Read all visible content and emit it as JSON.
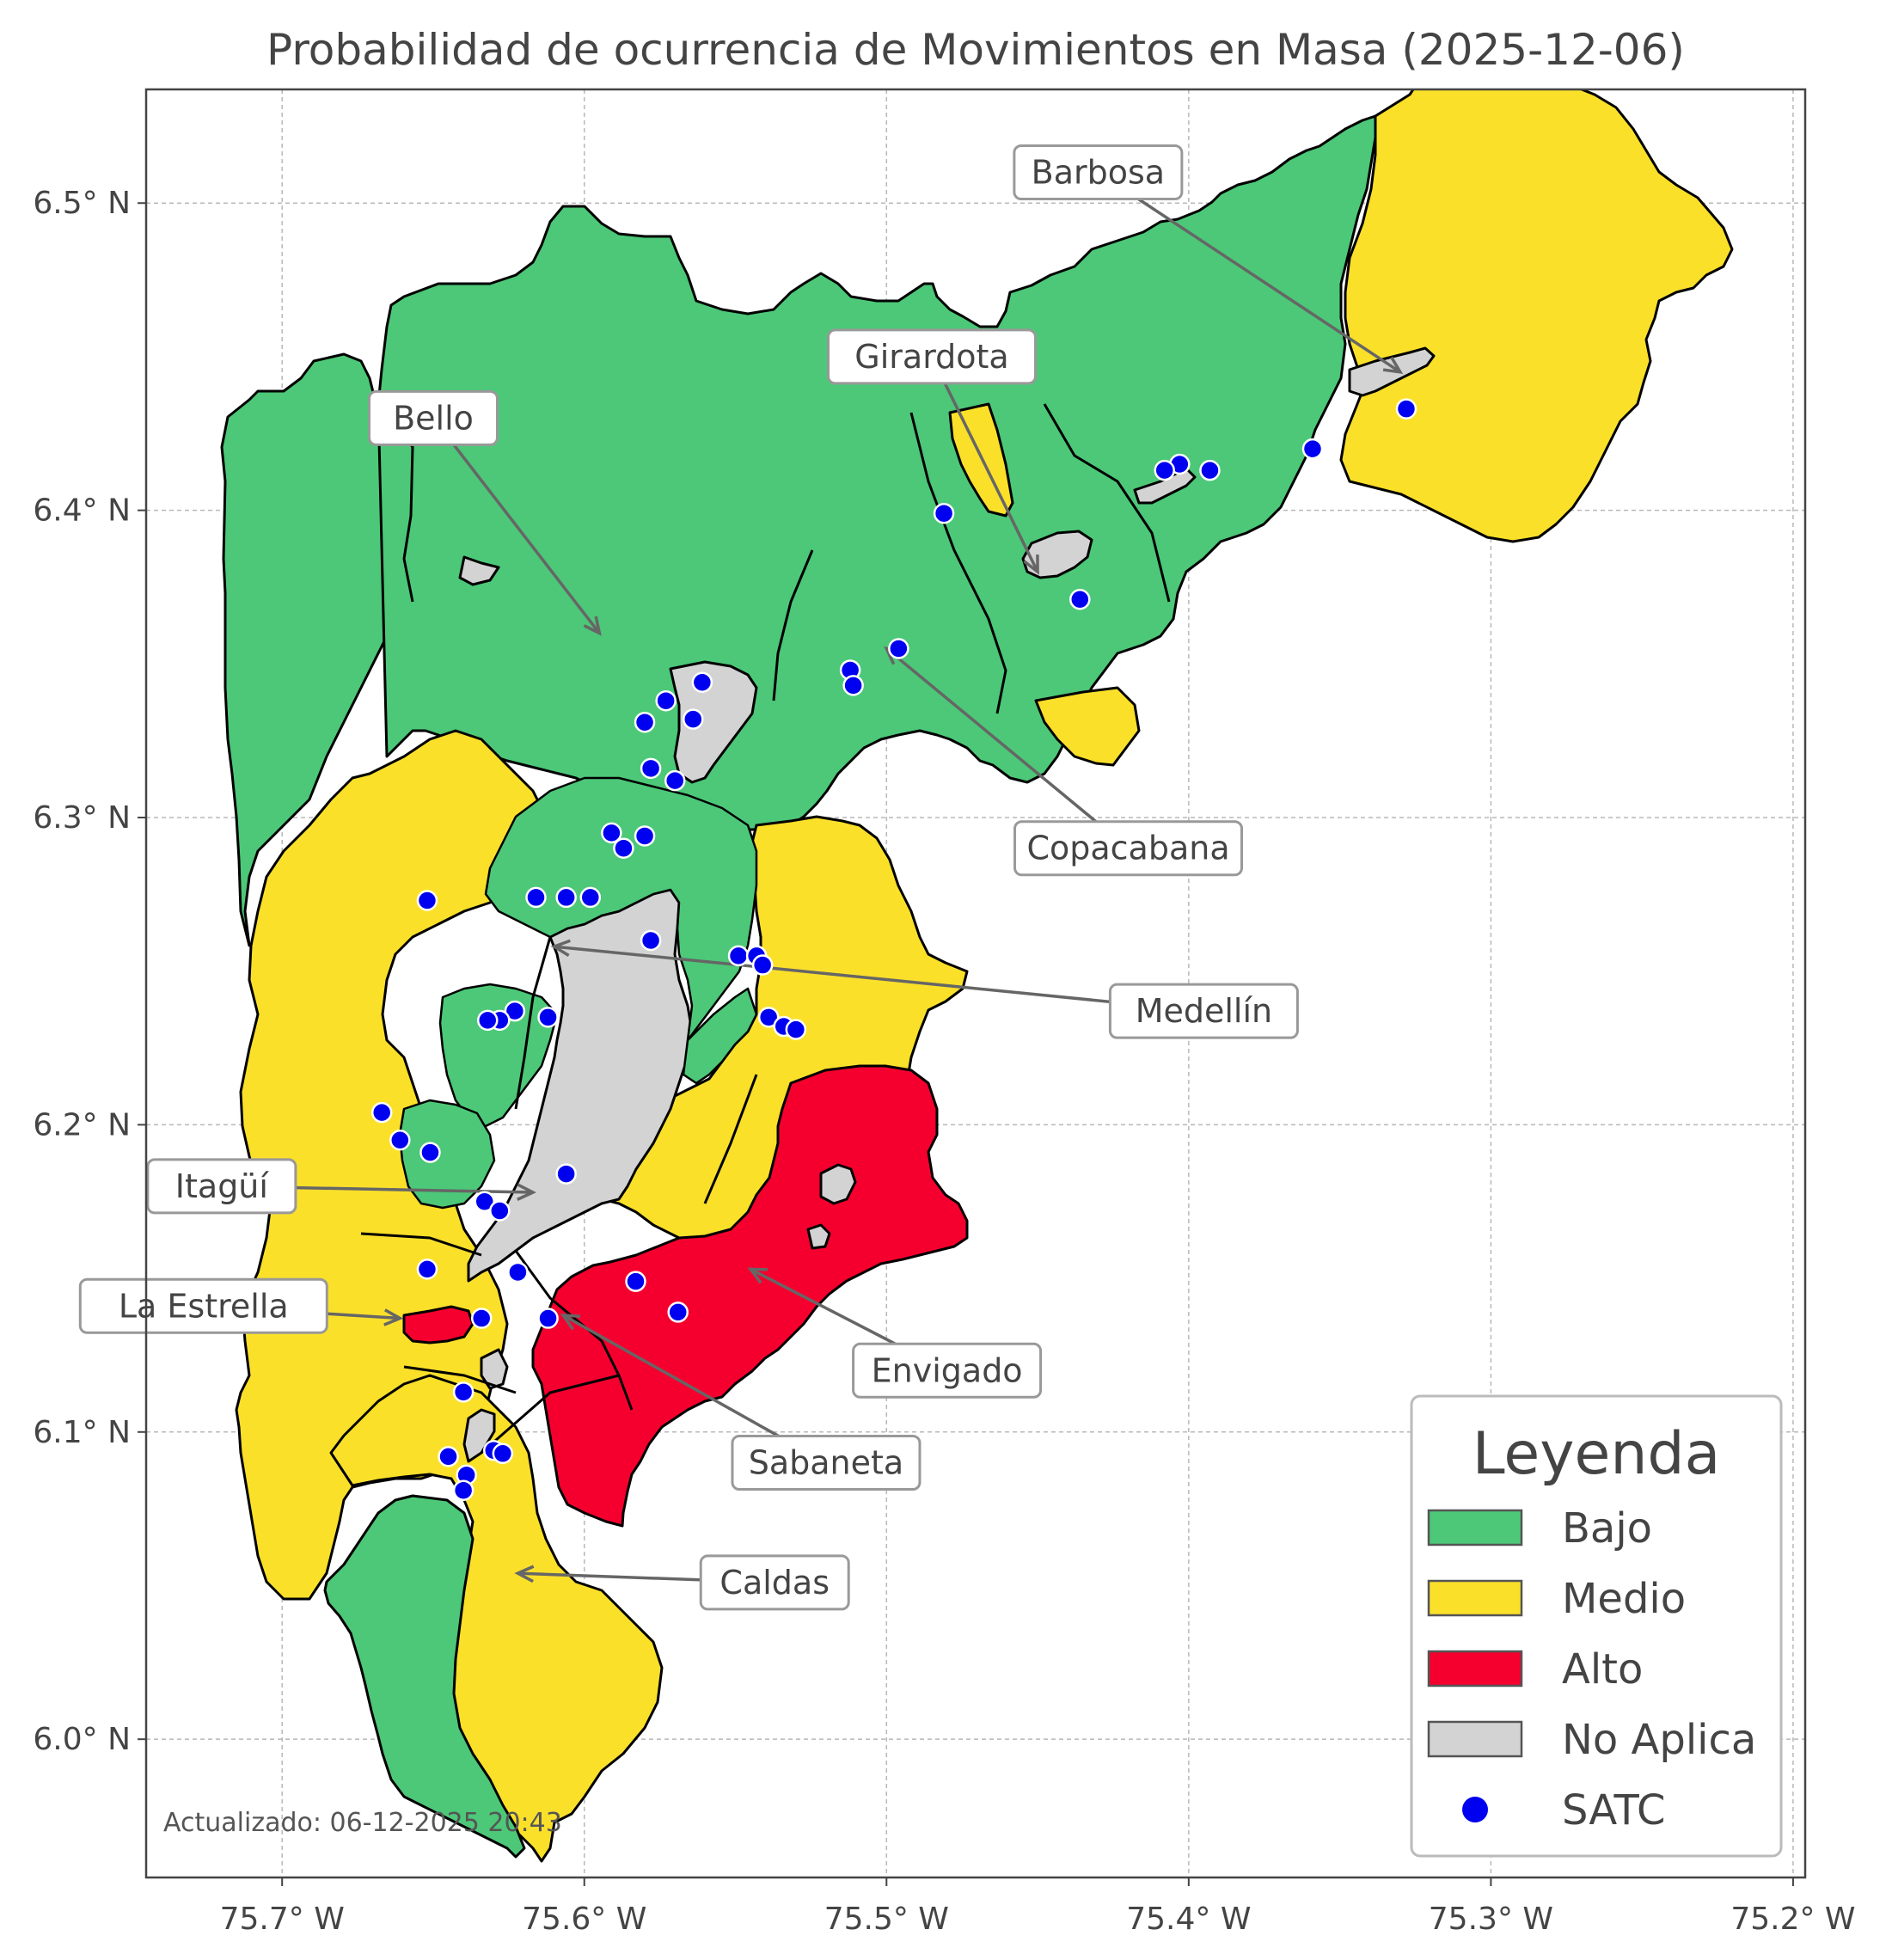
{
  "title": "Probabilidad de ocurrencia de Movimientos en Masa (2025-12-06)",
  "axes": {
    "x_ticks": [
      {
        "lon": -75.7,
        "label": "75.7° W"
      },
      {
        "lon": -75.6,
        "label": "75.6° W"
      },
      {
        "lon": -75.5,
        "label": "75.5° W"
      },
      {
        "lon": -75.4,
        "label": "75.4° W"
      },
      {
        "lon": -75.3,
        "label": "75.3° W"
      },
      {
        "lon": -75.2,
        "label": "75.2° W"
      }
    ],
    "y_ticks": [
      {
        "lat": 6.5,
        "label": "6.5° N"
      },
      {
        "lat": 6.4,
        "label": "6.4° N"
      },
      {
        "lat": 6.3,
        "label": "6.3° N"
      },
      {
        "lat": 6.2,
        "label": "6.2° N"
      },
      {
        "lat": 6.1,
        "label": "6.1° N"
      },
      {
        "lat": 6.0,
        "label": "6.0° N"
      }
    ],
    "lon_range": [
      -75.745,
      -75.196
    ],
    "lat_range": [
      5.955,
      6.537
    ],
    "grid": true
  },
  "colors": {
    "bajo": "#4cc878",
    "medio": "#fbe02a",
    "alto": "#f5002e",
    "no_aplica": "#d3d3d3",
    "satc": "#0000f0",
    "border": "#000000",
    "subborder": "#555555"
  },
  "municipalities": [
    {
      "name": "Barbosa",
      "label_lon": -75.43,
      "label_lat": 6.51,
      "target_lon": -75.33,
      "target_lat": 6.445
    },
    {
      "name": "Girardota",
      "label_lon": -75.485,
      "label_lat": 6.45,
      "target_lon": -75.45,
      "target_lat": 6.38
    },
    {
      "name": "Bello",
      "label_lon": -75.65,
      "label_lat": 6.43,
      "target_lon": -75.595,
      "target_lat": 6.36
    },
    {
      "name": "Copacabana",
      "label_lon": -75.42,
      "label_lat": 6.29,
      "target_lon": -75.5,
      "target_lat": 6.355
    },
    {
      "name": "Medellín",
      "label_lon": -75.395,
      "label_lat": 6.237,
      "target_lon": -75.61,
      "target_lat": 6.258
    },
    {
      "name": "Itagüí",
      "label_lon": -75.72,
      "label_lat": 6.18,
      "target_lon": -75.617,
      "target_lat": 6.178
    },
    {
      "name": "La Estrella",
      "label_lon": -75.726,
      "label_lat": 6.141,
      "target_lon": -75.661,
      "target_lat": 6.137
    },
    {
      "name": "Envigado",
      "label_lon": -75.48,
      "label_lat": 6.12,
      "target_lon": -75.545,
      "target_lat": 6.153
    },
    {
      "name": "Sabaneta",
      "label_lon": -75.52,
      "label_lat": 6.09,
      "target_lon": -75.607,
      "target_lat": 6.138
    },
    {
      "name": "Caldas",
      "label_lon": -75.537,
      "label_lat": 6.051,
      "target_lon": -75.622,
      "target_lat": 6.054
    }
  ],
  "satc_points": [
    [
      -75.328,
      6.433
    ],
    [
      -75.359,
      6.42
    ],
    [
      -75.393,
      6.413
    ],
    [
      -75.403,
      6.415
    ],
    [
      -75.408,
      6.413
    ],
    [
      -75.481,
      6.399
    ],
    [
      -75.436,
      6.371
    ],
    [
      -75.496,
      6.355
    ],
    [
      -75.512,
      6.348
    ],
    [
      -75.511,
      6.343
    ],
    [
      -75.561,
      6.344
    ],
    [
      -75.564,
      6.332
    ],
    [
      -75.573,
      6.338
    ],
    [
      -75.58,
      6.331
    ],
    [
      -75.578,
      6.316
    ],
    [
      -75.57,
      6.312
    ],
    [
      -75.591,
      6.295
    ],
    [
      -75.58,
      6.294
    ],
    [
      -75.587,
      6.29
    ],
    [
      -75.652,
      6.273
    ],
    [
      -75.616,
      6.274
    ],
    [
      -75.606,
      6.274
    ],
    [
      -75.598,
      6.274
    ],
    [
      -75.578,
      6.26
    ],
    [
      -75.549,
      6.255
    ],
    [
      -75.543,
      6.255
    ],
    [
      -75.541,
      6.252
    ],
    [
      -75.539,
      6.235
    ],
    [
      -75.534,
      6.232
    ],
    [
      -75.53,
      6.231
    ],
    [
      -75.623,
      6.237
    ],
    [
      -75.612,
      6.235
    ],
    [
      -75.628,
      6.234
    ],
    [
      -75.632,
      6.234
    ],
    [
      -75.667,
      6.204
    ],
    [
      -75.661,
      6.195
    ],
    [
      -75.651,
      6.191
    ],
    [
      -75.606,
      6.184
    ],
    [
      -75.633,
      6.175
    ],
    [
      -75.628,
      6.172
    ],
    [
      -75.652,
      6.153
    ],
    [
      -75.622,
      6.152
    ],
    [
      -75.583,
      6.149
    ],
    [
      -75.569,
      6.139
    ],
    [
      -75.634,
      6.137
    ],
    [
      -75.612,
      6.137
    ],
    [
      -75.64,
      6.113
    ],
    [
      -75.63,
      6.094
    ],
    [
      -75.627,
      6.093
    ],
    [
      -75.645,
      6.092
    ],
    [
      -75.639,
      6.086
    ],
    [
      -75.64,
      6.081
    ]
  ],
  "legend": {
    "title": "Leyenda",
    "items": [
      {
        "label": "Bajo",
        "kind": "patch",
        "color": "#4cc878"
      },
      {
        "label": "Medio",
        "kind": "patch",
        "color": "#fbe02a"
      },
      {
        "label": "Alto",
        "kind": "patch",
        "color": "#f5002e"
      },
      {
        "label": "No Aplica",
        "kind": "patch",
        "color": "#d3d3d3"
      },
      {
        "label": "SATC",
        "kind": "marker",
        "color": "#0000f0"
      }
    ]
  },
  "updated": "Actualizado: 06-12-2025 20:43"
}
